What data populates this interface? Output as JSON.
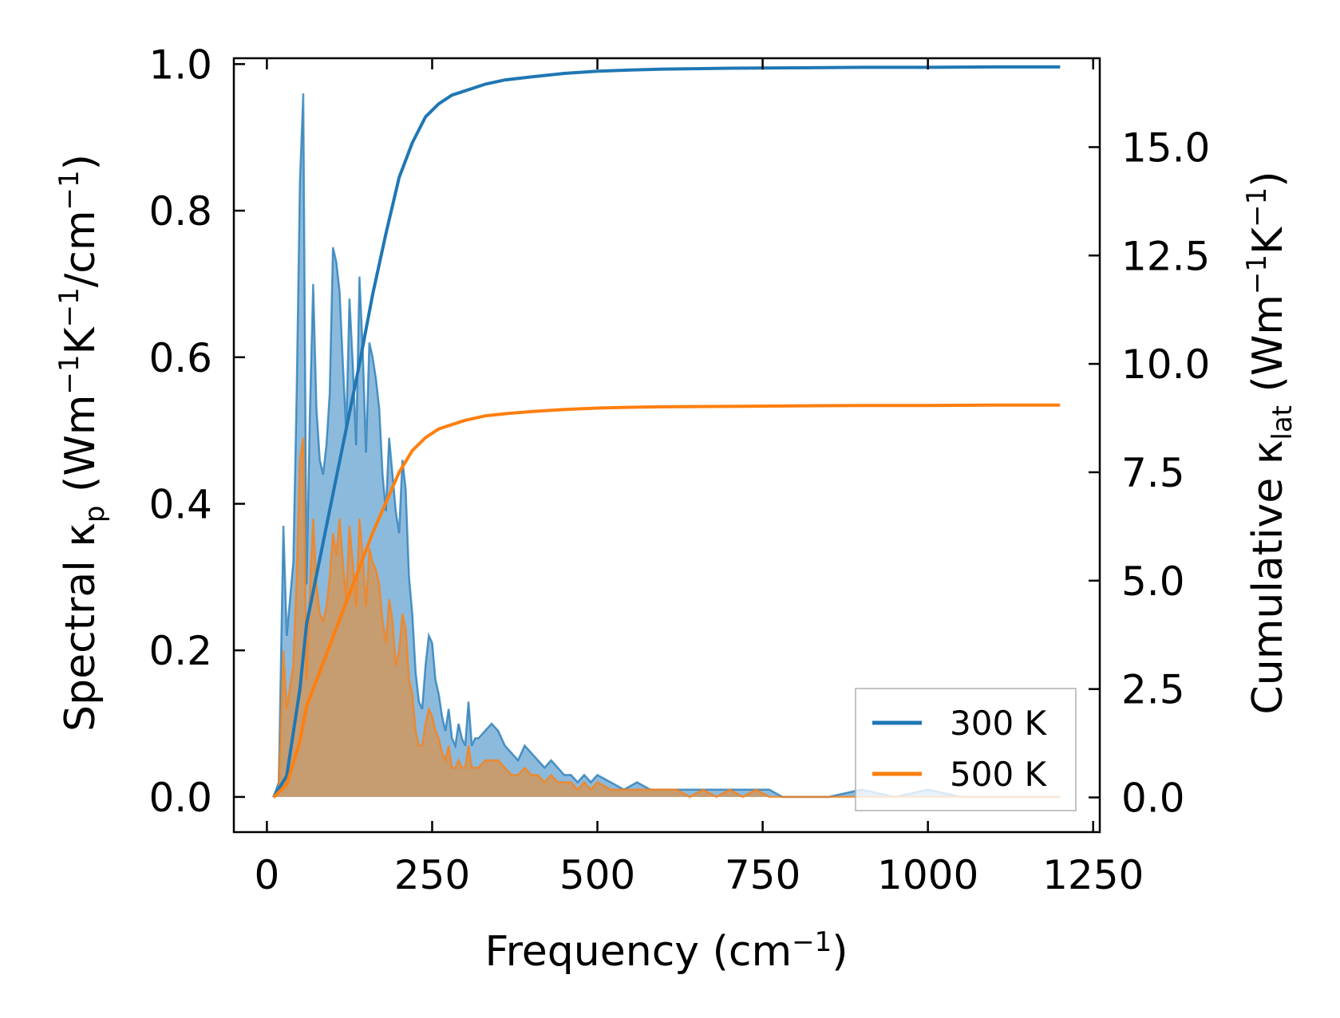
{
  "chart_data": {
    "type": "line",
    "x_axis": {
      "label_main": "Frequency (cm",
      "label_sup": "−1",
      "label_tail": ")",
      "range": [
        -50,
        1260
      ],
      "ticks": [
        0,
        250,
        500,
        750,
        1000,
        1250
      ],
      "tick_labels": [
        "0",
        "250",
        "500",
        "750",
        "1000",
        "1250"
      ]
    },
    "y_left": {
      "label_parts": [
        "Spectral κ",
        "p",
        " (Wm",
        "−1",
        "K",
        "−1",
        "/cm",
        "−1",
        ")"
      ],
      "range": [
        -0.048,
        1.008
      ],
      "ticks": [
        0.0,
        0.2,
        0.4,
        0.6,
        0.8,
        1.0
      ],
      "tick_labels": [
        "0.0",
        "0.2",
        "0.4",
        "0.6",
        "0.8",
        "1.0"
      ]
    },
    "y_right": {
      "label_parts": [
        "Cumulative κ",
        "lat",
        " (Wm",
        "−1",
        "K",
        "−1",
        ")"
      ],
      "range": [
        -0.8,
        17.05
      ],
      "ticks": [
        0.0,
        2.5,
        5.0,
        7.5,
        10.0,
        12.5,
        15.0
      ],
      "tick_labels": [
        "0.0",
        "2.5",
        "5.0",
        "7.5",
        "10.0",
        "12.5",
        "15.0"
      ]
    },
    "legend": {
      "position": "lower-right",
      "entries": [
        "300 K",
        "500 K"
      ]
    },
    "grid": false,
    "colors": {
      "300K": "#1f77b4",
      "500K": "#ff7f0e",
      "300K_fill": "#7fb3d9",
      "500K_fill": "#c99a6a"
    },
    "series": [
      {
        "name": "300 K",
        "kind": "spectral",
        "axis": "left",
        "x": [
          10,
          18,
          25,
          30,
          35,
          40,
          45,
          50,
          55,
          60,
          65,
          70,
          75,
          80,
          85,
          90,
          95,
          100,
          105,
          110,
          115,
          120,
          125,
          130,
          135,
          140,
          145,
          150,
          155,
          160,
          165,
          170,
          175,
          180,
          185,
          190,
          195,
          200,
          205,
          210,
          215,
          220,
          225,
          230,
          235,
          240,
          245,
          250,
          255,
          260,
          265,
          270,
          275,
          280,
          285,
          290,
          295,
          300,
          305,
          310,
          315,
          320,
          330,
          340,
          350,
          360,
          370,
          380,
          390,
          400,
          410,
          420,
          430,
          440,
          450,
          460,
          470,
          480,
          490,
          500,
          520,
          540,
          560,
          580,
          600,
          620,
          640,
          660,
          680,
          700,
          720,
          740,
          760,
          780,
          800,
          850,
          900,
          950,
          1000,
          1050,
          1100,
          1150,
          1200
        ],
        "y": [
          0.0,
          0.02,
          0.37,
          0.22,
          0.27,
          0.32,
          0.55,
          0.84,
          0.96,
          0.29,
          0.52,
          0.7,
          0.53,
          0.46,
          0.44,
          0.48,
          0.55,
          0.75,
          0.73,
          0.69,
          0.59,
          0.5,
          0.68,
          0.59,
          0.48,
          0.71,
          0.61,
          0.47,
          0.62,
          0.6,
          0.57,
          0.53,
          0.44,
          0.39,
          0.49,
          0.44,
          0.39,
          0.36,
          0.46,
          0.42,
          0.3,
          0.25,
          0.17,
          0.13,
          0.12,
          0.18,
          0.22,
          0.21,
          0.16,
          0.14,
          0.11,
          0.09,
          0.12,
          0.08,
          0.07,
          0.1,
          0.08,
          0.07,
          0.13,
          0.07,
          0.08,
          0.08,
          0.09,
          0.1,
          0.09,
          0.07,
          0.06,
          0.05,
          0.07,
          0.06,
          0.05,
          0.04,
          0.05,
          0.04,
          0.03,
          0.03,
          0.02,
          0.03,
          0.02,
          0.03,
          0.02,
          0.01,
          0.02,
          0.01,
          0.01,
          0.01,
          0.01,
          0.01,
          0.01,
          0.01,
          0.01,
          0.01,
          0.01,
          0.0,
          0.0,
          0.0,
          0.01,
          0.0,
          0.01,
          0.0,
          0.0,
          0.0,
          0.0
        ]
      },
      {
        "name": "500 K",
        "kind": "spectral",
        "axis": "left",
        "x": [
          10,
          18,
          25,
          30,
          35,
          40,
          45,
          50,
          55,
          60,
          65,
          70,
          75,
          80,
          85,
          90,
          95,
          100,
          105,
          110,
          115,
          120,
          125,
          130,
          135,
          140,
          145,
          150,
          155,
          160,
          165,
          170,
          175,
          180,
          185,
          190,
          195,
          200,
          205,
          210,
          215,
          220,
          225,
          230,
          235,
          240,
          245,
          250,
          255,
          260,
          265,
          270,
          275,
          280,
          285,
          290,
          295,
          300,
          305,
          310,
          315,
          320,
          330,
          340,
          350,
          360,
          370,
          380,
          390,
          400,
          410,
          420,
          430,
          440,
          450,
          460,
          470,
          480,
          490,
          500,
          520,
          540,
          560,
          580,
          600,
          620,
          640,
          660,
          680,
          700,
          720,
          740,
          760,
          780,
          800,
          850,
          900,
          950,
          1000,
          1050,
          1100,
          1150,
          1200
        ],
        "y": [
          0.0,
          0.01,
          0.2,
          0.12,
          0.15,
          0.18,
          0.3,
          0.46,
          0.49,
          0.16,
          0.28,
          0.38,
          0.29,
          0.25,
          0.24,
          0.26,
          0.3,
          0.36,
          0.33,
          0.38,
          0.32,
          0.27,
          0.37,
          0.32,
          0.26,
          0.38,
          0.33,
          0.26,
          0.34,
          0.32,
          0.31,
          0.29,
          0.24,
          0.21,
          0.27,
          0.24,
          0.18,
          0.2,
          0.25,
          0.23,
          0.16,
          0.14,
          0.09,
          0.07,
          0.07,
          0.1,
          0.12,
          0.11,
          0.09,
          0.08,
          0.06,
          0.05,
          0.07,
          0.04,
          0.04,
          0.05,
          0.04,
          0.04,
          0.07,
          0.04,
          0.04,
          0.04,
          0.05,
          0.05,
          0.05,
          0.04,
          0.03,
          0.03,
          0.04,
          0.03,
          0.03,
          0.02,
          0.03,
          0.02,
          0.02,
          0.02,
          0.01,
          0.02,
          0.01,
          0.02,
          0.01,
          0.01,
          0.01,
          0.01,
          0.01,
          0.01,
          0.0,
          0.01,
          0.0,
          0.01,
          0.0,
          0.01,
          0.0,
          0.0,
          0.0,
          0.0,
          0.0,
          0.0,
          0.0,
          0.0,
          0.0,
          0.0,
          0.0
        ]
      },
      {
        "name": "300 K",
        "kind": "cumulative",
        "axis": "right",
        "x": [
          10,
          30,
          50,
          60,
          80,
          100,
          120,
          140,
          160,
          180,
          200,
          220,
          240,
          260,
          280,
          300,
          330,
          360,
          400,
          450,
          500,
          550,
          600,
          700,
          800,
          900,
          1000,
          1100,
          1200
        ],
        "y": [
          0.0,
          0.5,
          2.5,
          4.0,
          5.5,
          7.0,
          8.5,
          10.0,
          11.6,
          13.0,
          14.3,
          15.1,
          15.7,
          16.0,
          16.2,
          16.3,
          16.45,
          16.55,
          16.62,
          16.7,
          16.75,
          16.78,
          16.8,
          16.82,
          16.83,
          16.84,
          16.84,
          16.85,
          16.85
        ]
      },
      {
        "name": "500 K",
        "kind": "cumulative",
        "axis": "right",
        "x": [
          10,
          30,
          50,
          60,
          80,
          100,
          120,
          140,
          160,
          180,
          200,
          220,
          240,
          260,
          280,
          300,
          330,
          360,
          400,
          450,
          500,
          550,
          600,
          700,
          800,
          900,
          1000,
          1100,
          1200
        ],
        "y": [
          0.0,
          0.3,
          1.3,
          2.1,
          2.9,
          3.7,
          4.5,
          5.3,
          6.1,
          6.8,
          7.5,
          8.0,
          8.3,
          8.5,
          8.6,
          8.7,
          8.8,
          8.85,
          8.9,
          8.95,
          8.98,
          9.0,
          9.01,
          9.02,
          9.03,
          9.04,
          9.04,
          9.05,
          9.05
        ]
      }
    ]
  }
}
